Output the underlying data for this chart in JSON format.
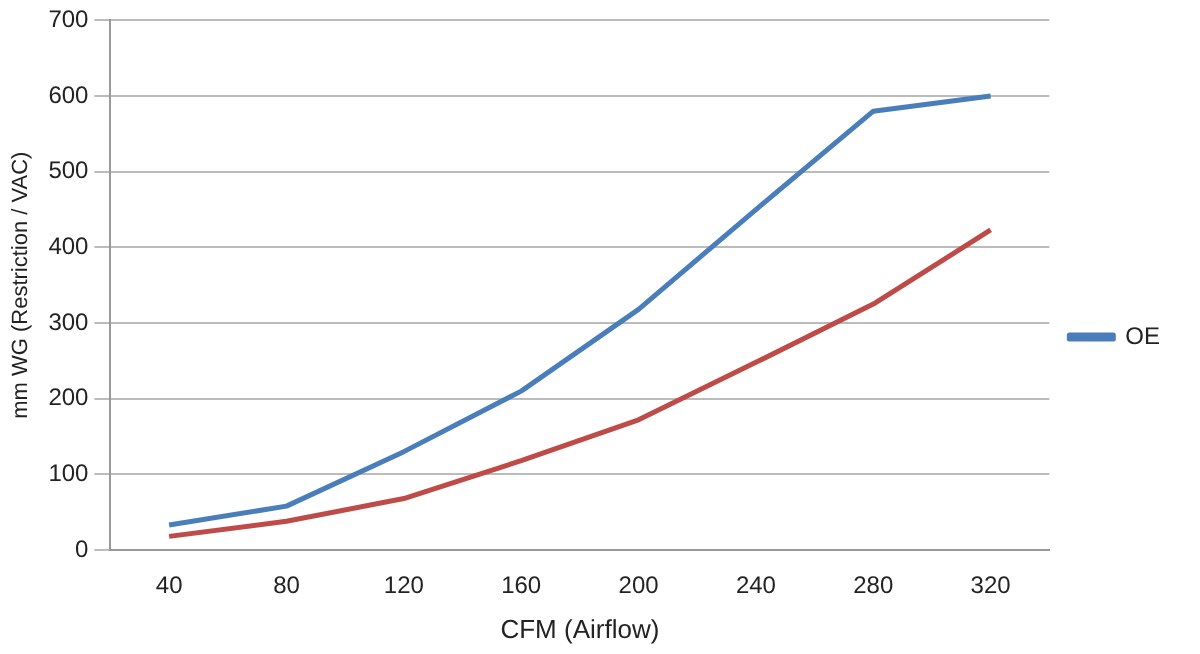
{
  "chart_data": {
    "type": "line",
    "xlabel": "CFM (Airflow)",
    "ylabel": "mm WG (Restriction / VAC)",
    "categories": [
      "40",
      "80",
      "120",
      "160",
      "200",
      "240",
      "280",
      "320"
    ],
    "series": [
      {
        "name": "OE",
        "color": "#4a7ebb",
        "values": [
          33,
          58,
          130,
          210,
          318,
          450,
          580,
          600
        ]
      },
      {
        "color": "#be4b48",
        "values": [
          18,
          38,
          68,
          118,
          172,
          248,
          325,
          423
        ]
      }
    ],
    "ylim": [
      0,
      700
    ],
    "yticks": [
      0,
      100,
      200,
      300,
      400,
      500,
      600,
      700
    ],
    "grid": "y",
    "legend": "right",
    "marker": "none",
    "line_style": "solid"
  }
}
